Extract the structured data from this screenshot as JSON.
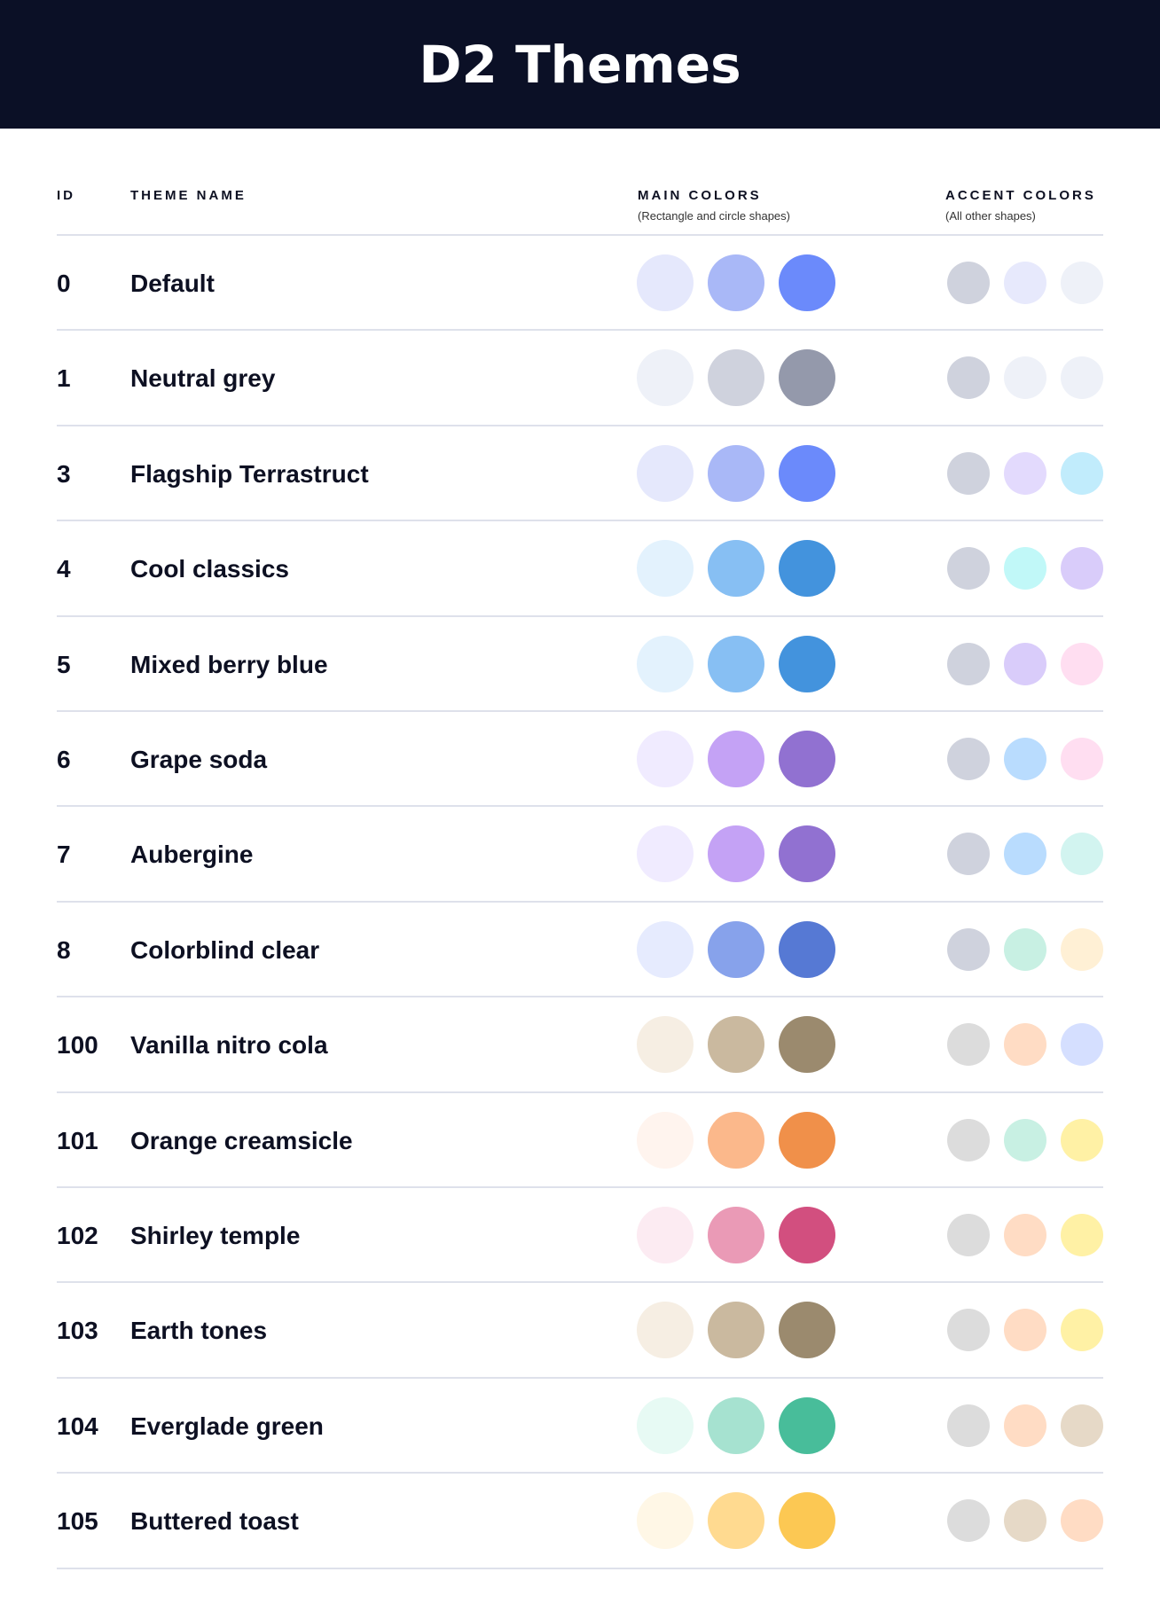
{
  "header": {
    "title": "D2 Themes"
  },
  "columns": {
    "id": "ID",
    "name": "THEME NAME",
    "main": "MAIN COLORS",
    "main_sub": "(Rectangle and circle shapes)",
    "accent": "ACCENT COLORS",
    "accent_sub": "(All other shapes)"
  },
  "themes": [
    {
      "id": "0",
      "name": "Default",
      "main": [
        "#E5E8FC",
        "#A9B8F7",
        "#6B8AFB"
      ],
      "accent": [
        "#CFD2DD",
        "#E7E9FC",
        "#EEF1F8"
      ]
    },
    {
      "id": "1",
      "name": "Neutral grey",
      "main": [
        "#EEF1F8",
        "#CFD2DD",
        "#9499AB"
      ],
      "accent": [
        "#CFD2DD",
        "#EEF1F8",
        "#EEF1F8"
      ]
    },
    {
      "id": "3",
      "name": "Flagship Terrastruct",
      "main": [
        "#E5E8FC",
        "#A9B8F7",
        "#6B8AFB"
      ],
      "accent": [
        "#CFD2DD",
        "#E3DAFD",
        "#C1ECFC"
      ]
    },
    {
      "id": "4",
      "name": "Cool classics",
      "main": [
        "#E3F2FD",
        "#87BFF3",
        "#4393DD"
      ],
      "accent": [
        "#CFD2DD",
        "#C1F8F8",
        "#D9CCFA"
      ]
    },
    {
      "id": "5",
      "name": "Mixed berry blue",
      "main": [
        "#E3F2FD",
        "#87BFF3",
        "#4393DD"
      ],
      "accent": [
        "#CFD2DD",
        "#D9CCFA",
        "#FFDEF1"
      ]
    },
    {
      "id": "6",
      "name": "Grape soda",
      "main": [
        "#F0EBFF",
        "#C4A2F5",
        "#9171D1"
      ],
      "accent": [
        "#CFD2DD",
        "#B9DCFE",
        "#FFDEF1"
      ]
    },
    {
      "id": "7",
      "name": "Aubergine",
      "main": [
        "#F0EBFF",
        "#C4A2F5",
        "#9171D1"
      ],
      "accent": [
        "#CFD2DD",
        "#B9DCFE",
        "#D2F4F0"
      ]
    },
    {
      "id": "8",
      "name": "Colorblind clear",
      "main": [
        "#E6EBFE",
        "#87A2EB",
        "#5679D4"
      ],
      "accent": [
        "#CFD2DD",
        "#C8F0E3",
        "#FFF0D5"
      ]
    },
    {
      "id": "100",
      "name": "Vanilla nitro cola",
      "main": [
        "#F6EEE3",
        "#CAB99F",
        "#9B8A6E"
      ],
      "accent": [
        "#DCDCDC",
        "#FFDCC4",
        "#D5DFFF"
      ]
    },
    {
      "id": "101",
      "name": "Orange creamsicle",
      "main": [
        "#FFF4EE",
        "#FBB88B",
        "#F0904A"
      ],
      "accent": [
        "#DCDCDC",
        "#C8F0E3",
        "#FFF1A5"
      ]
    },
    {
      "id": "102",
      "name": "Shirley temple",
      "main": [
        "#FCEBF2",
        "#EA9AB6",
        "#D24F7F"
      ],
      "accent": [
        "#DCDCDC",
        "#FFDCC4",
        "#FFF1A5"
      ]
    },
    {
      "id": "103",
      "name": "Earth tones",
      "main": [
        "#F6EEE3",
        "#CAB99F",
        "#9B8A6E"
      ],
      "accent": [
        "#DCDCDC",
        "#FFDCC4",
        "#FFF1A5"
      ]
    },
    {
      "id": "104",
      "name": "Everglade green",
      "main": [
        "#E7FAF4",
        "#A6E2D0",
        "#48BD9A"
      ],
      "accent": [
        "#DCDCDC",
        "#FFDCC4",
        "#E6D9C7"
      ]
    },
    {
      "id": "105",
      "name": "Buttered toast",
      "main": [
        "#FFF7E6",
        "#FFDA90",
        "#FCC853"
      ],
      "accent": [
        "#DCDCDC",
        "#E6D9C7",
        "#FFDCC4"
      ]
    }
  ]
}
